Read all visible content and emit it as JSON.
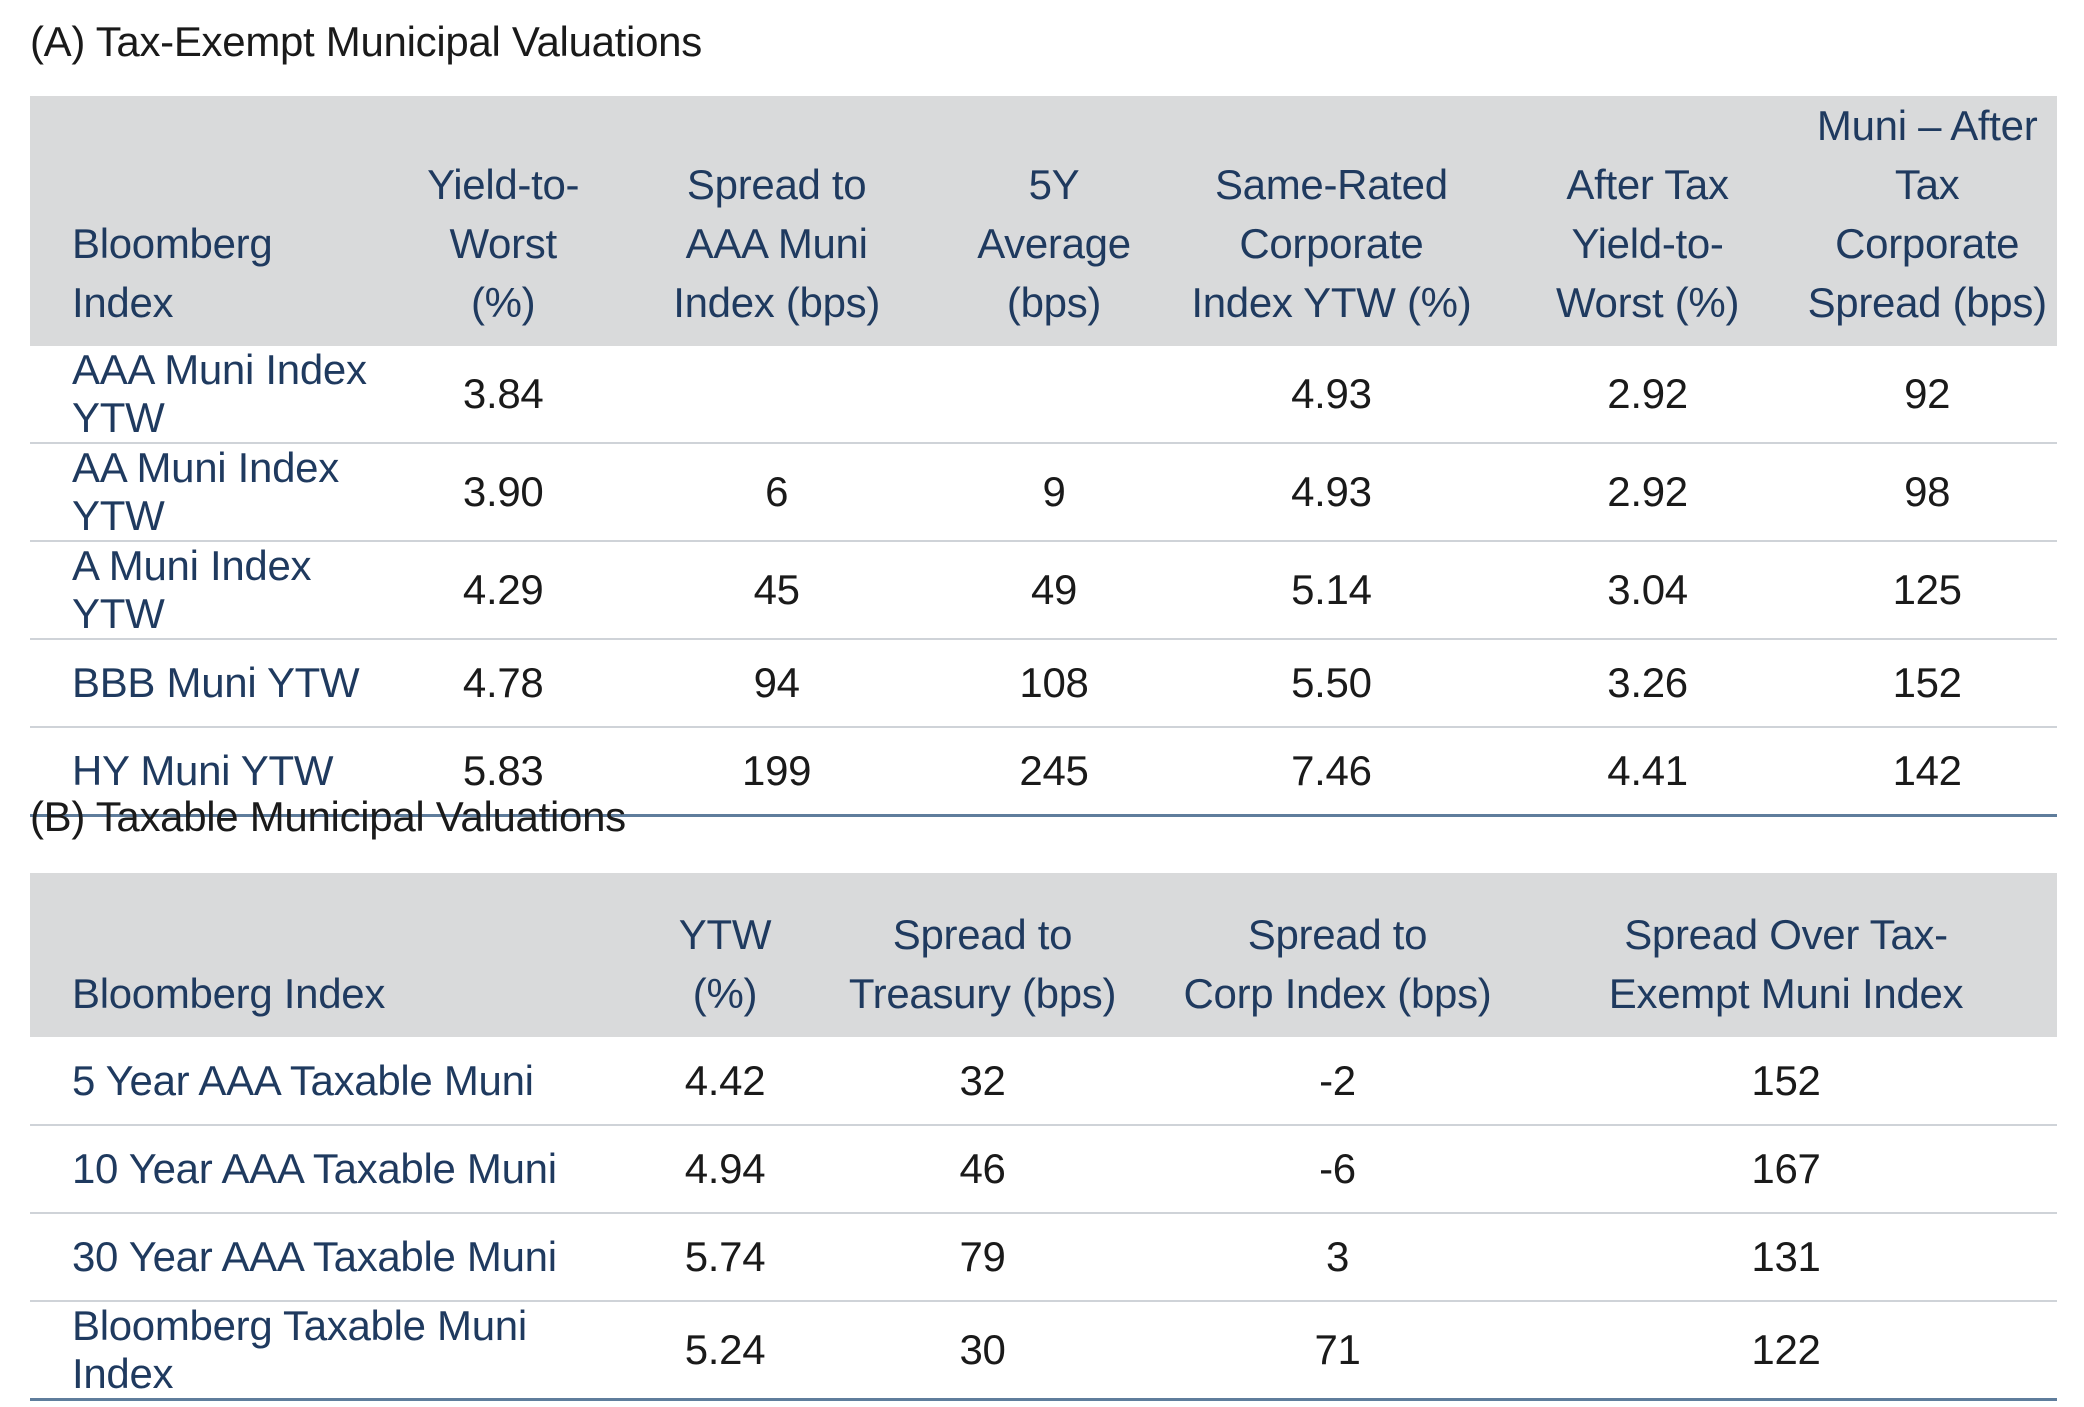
{
  "section_a": {
    "title": "(A) Tax-Exempt Municipal Valuations",
    "headers": [
      [
        "Bloomberg",
        "Index"
      ],
      [
        "Yield-to-",
        "Worst",
        "(%)"
      ],
      [
        "Spread to",
        "AAA Muni",
        "Index (bps)"
      ],
      [
        "5Y",
        "Average",
        "(bps)"
      ],
      [
        "Same-Rated",
        "Corporate",
        "Index YTW (%)"
      ],
      [
        "After Tax",
        "Yield-to-",
        "Worst (%)"
      ],
      [
        "Muni – After",
        "Tax Corporate",
        "Spread (bps)"
      ]
    ],
    "rows": [
      [
        "AAA Muni Index YTW",
        "3.84",
        "",
        "",
        "4.93",
        "2.92",
        "92"
      ],
      [
        "AA Muni Index YTW",
        "3.90",
        "6",
        "9",
        "4.93",
        "2.92",
        "98"
      ],
      [
        "A Muni Index YTW",
        "4.29",
        "45",
        "49",
        "5.14",
        "3.04",
        "125"
      ],
      [
        "BBB Muni YTW",
        "4.78",
        "94",
        "108",
        "5.50",
        "3.26",
        "152"
      ],
      [
        "HY Muni YTW",
        "5.83",
        "199",
        "245",
        "7.46",
        "4.41",
        "142"
      ]
    ]
  },
  "section_b": {
    "title": "(B) Taxable Municipal Valuations",
    "headers": [
      [
        "Bloomberg Index"
      ],
      [
        "YTW (%)"
      ],
      [
        "Spread to",
        "Treasury (bps)"
      ],
      [
        "Spread to",
        "Corp Index (bps)"
      ],
      [
        "Spread Over Tax-",
        "Exempt Muni Index"
      ]
    ],
    "rows": [
      [
        "5 Year AAA Taxable Muni",
        "4.42",
        "32",
        "-2",
        "152"
      ],
      [
        "10 Year AAA Taxable Muni",
        "4.94",
        "46",
        "-6",
        "167"
      ],
      [
        "30 Year AAA Taxable Muni",
        "5.74",
        "79",
        "3",
        "131"
      ],
      [
        "Bloomberg Taxable Muni Index",
        "5.24",
        "30",
        "71",
        "122"
      ]
    ]
  },
  "colors": {
    "header_background": "#d9dadb",
    "header_text": "#1f3a5f",
    "row_label_text": "#1f3a5f",
    "row_divider": "#cfd3d8",
    "table_bottom_rule": "#5f7d9c"
  }
}
